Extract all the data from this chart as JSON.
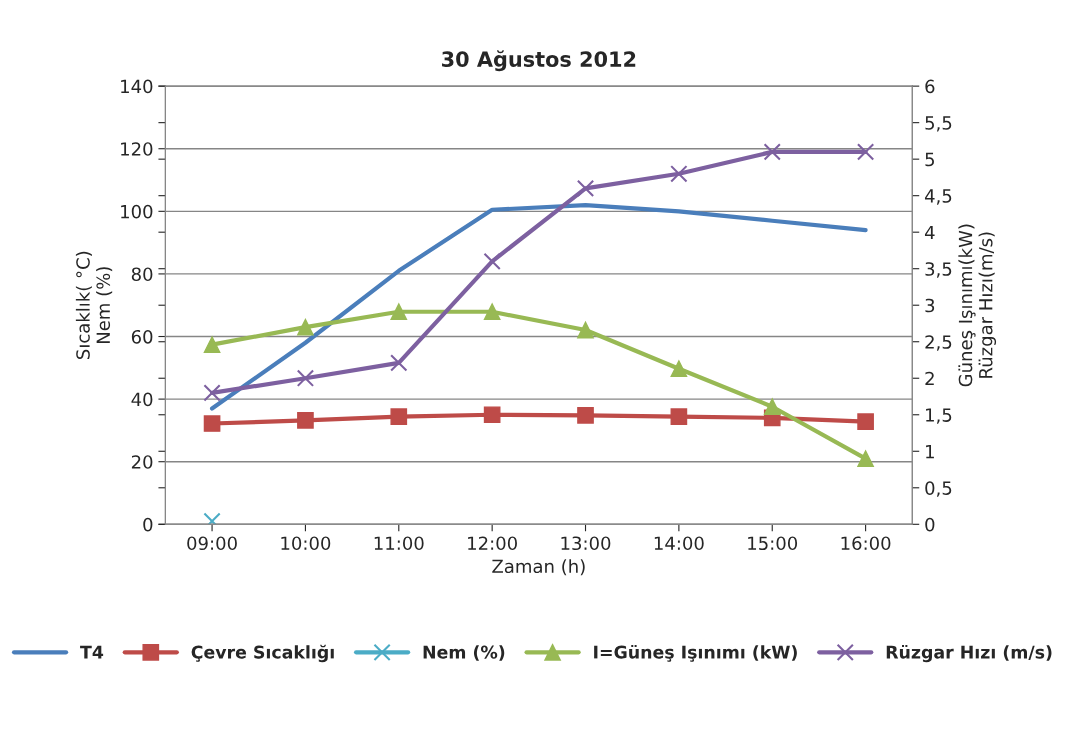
{
  "chart_data": {
    "type": "line",
    "title": "30 Ağustos 2012",
    "xlabel": "Zaman (h)",
    "ylabel": "Sıcaklık( °C)\nNem (%)",
    "y2label": "Güneş Işınımı(kW)\nRüzgar Hızı(m/s)",
    "categories": [
      "09:00",
      "10:00",
      "11:00",
      "12:00",
      "13:00",
      "14:00",
      "15:00",
      "16:00"
    ],
    "series": [
      {
        "name": "T4",
        "color": "#4a7ebb",
        "marker": "none",
        "values": [
          37,
          58,
          81,
          100.5,
          102,
          100,
          97,
          94
        ]
      },
      {
        "name": "Çevre Sıcaklığı",
        "color": "#be4b48",
        "marker": "square",
        "values": [
          32.2,
          33.2,
          34.4,
          35,
          34.8,
          34.4,
          34,
          32.8
        ]
      },
      {
        "name": "Nem (%)",
        "color": "#4bacc6",
        "marker": "cross",
        "values": [
          1,
          null,
          null,
          null,
          null,
          null,
          null,
          null
        ]
      },
      {
        "name": "I=Güneş Işınımı (kW)",
        "color": "#98b954",
        "marker": "triangle",
        "axis": "y2",
        "values": [
          2.46,
          2.7,
          2.91,
          2.91,
          2.66,
          2.13,
          1.61,
          0.9
        ]
      },
      {
        "name": "Rüzgar Hızı (m/s)",
        "color": "#7d60a0",
        "marker": "cross",
        "axis": "y2",
        "values": [
          1.8,
          2.0,
          2.21,
          3.6,
          4.6,
          4.8,
          5.1,
          5.1
        ]
      }
    ],
    "ylim": [
      0,
      140
    ],
    "yticks": [
      0,
      20,
      40,
      60,
      80,
      100,
      120,
      140
    ],
    "y2lim": [
      0,
      6
    ],
    "y2ticks": [
      0,
      {
        "value": 0.5,
        "label": "0,5"
      },
      1,
      {
        "value": 1.5,
        "label": "1,5"
      },
      2,
      {
        "value": 2.5,
        "label": "2,5"
      },
      3,
      {
        "value": 3.5,
        "label": "3,5"
      },
      4,
      {
        "value": 4.5,
        "label": "4,5"
      },
      5,
      {
        "value": 5.5,
        "label": "5,5"
      },
      6
    ],
    "grid": "y",
    "legend": "bottom",
    "line_style": "solid"
  }
}
